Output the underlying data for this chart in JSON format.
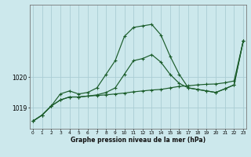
{
  "xlabel": "Graphe pression niveau de la mer (hPa)",
  "background_color": "#cce8ec",
  "grid_color": "#aacdd4",
  "line_color": "#1a5c2a",
  "hours": [
    0,
    1,
    2,
    3,
    4,
    5,
    6,
    7,
    8,
    9,
    10,
    11,
    12,
    13,
    14,
    15,
    16,
    17,
    18,
    19,
    20,
    21,
    22,
    23
  ],
  "series": [
    [
      1018.55,
      1018.75,
      1019.05,
      1019.25,
      1019.35,
      1019.35,
      1019.38,
      1019.4,
      1019.42,
      1019.45,
      1019.48,
      1019.52,
      1019.55,
      1019.58,
      1019.6,
      1019.65,
      1019.7,
      1019.72,
      1019.75,
      1019.77,
      1019.78,
      1019.82,
      1019.88,
      1021.2
    ],
    [
      1018.55,
      1018.75,
      1019.05,
      1019.25,
      1019.35,
      1019.35,
      1019.38,
      1019.42,
      1019.5,
      1019.65,
      1020.1,
      1020.55,
      1020.62,
      1020.75,
      1020.5,
      1020.1,
      1019.8,
      1019.65,
      1019.6,
      1019.55,
      1019.5,
      1019.62,
      1019.75,
      1021.2
    ],
    [
      1018.55,
      1018.75,
      1019.05,
      1019.45,
      1019.55,
      1019.45,
      1019.5,
      1019.65,
      1020.1,
      1020.55,
      1021.35,
      1021.65,
      1021.7,
      1021.75,
      1021.4,
      1020.7,
      1020.1,
      1019.65,
      1019.6,
      1019.55,
      1019.5,
      1019.62,
      1019.75,
      1021.2
    ]
  ],
  "yticks": [
    1019,
    1020
  ],
  "ylim": [
    1018.3,
    1022.4
  ],
  "xlim": [
    -0.3,
    23.3
  ]
}
